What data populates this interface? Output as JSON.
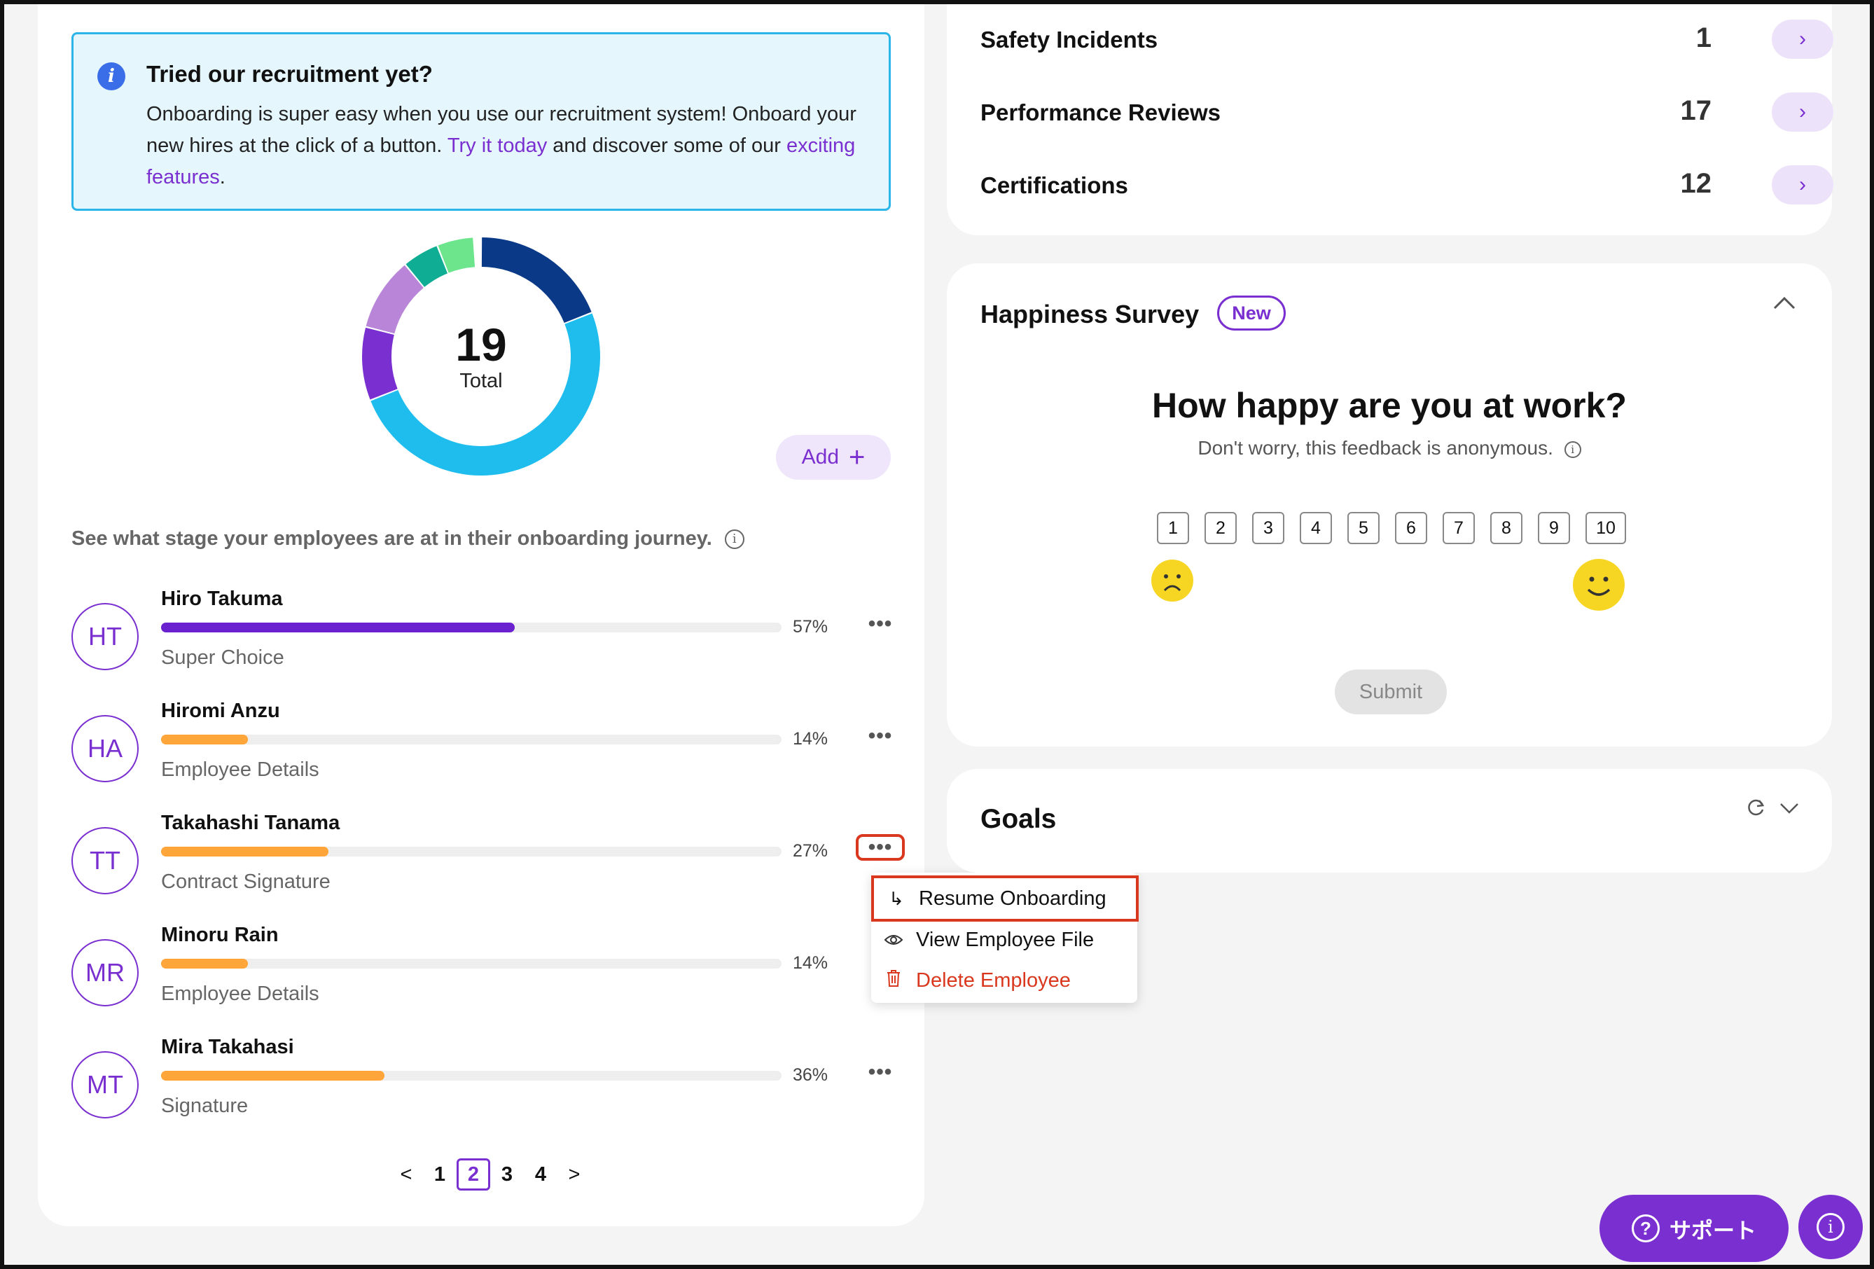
{
  "banner": {
    "title": "Tried our recruitment yet?",
    "text_1": "Onboarding is super easy when you use our recruitment system! Onboard your new hires at the click of a button. ",
    "link_try": "Try it today",
    "text_2": " and discover some of our ",
    "link_features": "exciting features",
    "text_3": "."
  },
  "donut": {
    "total": "19",
    "total_label": "Total",
    "segment_colors": [
      "#0a3a87",
      "#1ebdee",
      "#7a2fd0",
      "#b985d8",
      "#0fae94",
      "#6de58c"
    ],
    "segment_fractions": [
      0.19,
      0.5,
      0.1,
      0.1,
      0.05,
      0.05
    ]
  },
  "add_button": {
    "label": "Add",
    "icon": "plus-icon"
  },
  "stage_note": "See what stage your employees are at in their onboarding journey.",
  "employees": [
    {
      "initials": "HT",
      "name": "Hiro Takuma",
      "progress": 0.57,
      "percent": "57%",
      "stage": "Super Choice",
      "color": "#6a22d1"
    },
    {
      "initials": "HA",
      "name": "Hiromi Anzu",
      "progress": 0.14,
      "percent": "14%",
      "stage": "Employee Details",
      "color": "#ffa53a"
    },
    {
      "initials": "TT",
      "name": "Takahashi Tanama",
      "progress": 0.27,
      "percent": "27%",
      "stage": "Contract Signature",
      "color": "#ffa53a"
    },
    {
      "initials": "MR",
      "name": "Minoru Rain",
      "progress": 0.14,
      "percent": "14%",
      "stage": "Employee Details",
      "color": "#ffa53a"
    },
    {
      "initials": "MT",
      "name": "Mira Takahasi",
      "progress": 0.36,
      "percent": "36%",
      "stage": "Signature",
      "color": "#ffa53a"
    }
  ],
  "pagination": {
    "prev": "<",
    "pages": [
      "1",
      "2",
      "3",
      "4"
    ],
    "current": "2",
    "next": ">"
  },
  "context_menu": {
    "items": [
      {
        "label": "Resume Onboarding",
        "icon": "arrow-return-icon"
      },
      {
        "label": "View Employee File",
        "icon": "eye-icon"
      },
      {
        "label": "Delete Employee",
        "icon": "trash-icon"
      }
    ]
  },
  "metrics": [
    {
      "label": "Safety Incidents",
      "value": "1"
    },
    {
      "label": "Performance Reviews",
      "value": "17"
    },
    {
      "label": "Certifications",
      "value": "12"
    }
  ],
  "survey": {
    "title": "Happiness Survey",
    "badge": "New",
    "question": "How happy are you at work?",
    "subtitle": "Don't worry, this feedback is anonymous.",
    "scale": [
      "1",
      "2",
      "3",
      "4",
      "5",
      "6",
      "7",
      "8",
      "9",
      "10"
    ],
    "submit": "Submit"
  },
  "goals": {
    "title": "Goals"
  },
  "support": {
    "label": "サポート",
    "icon": "question-circle-icon"
  },
  "colors": {
    "accent": "#7a2fd0",
    "danger": "#d9381e",
    "banner_bg": "#e5f6fd",
    "progress_orange": "#ffa53a"
  }
}
